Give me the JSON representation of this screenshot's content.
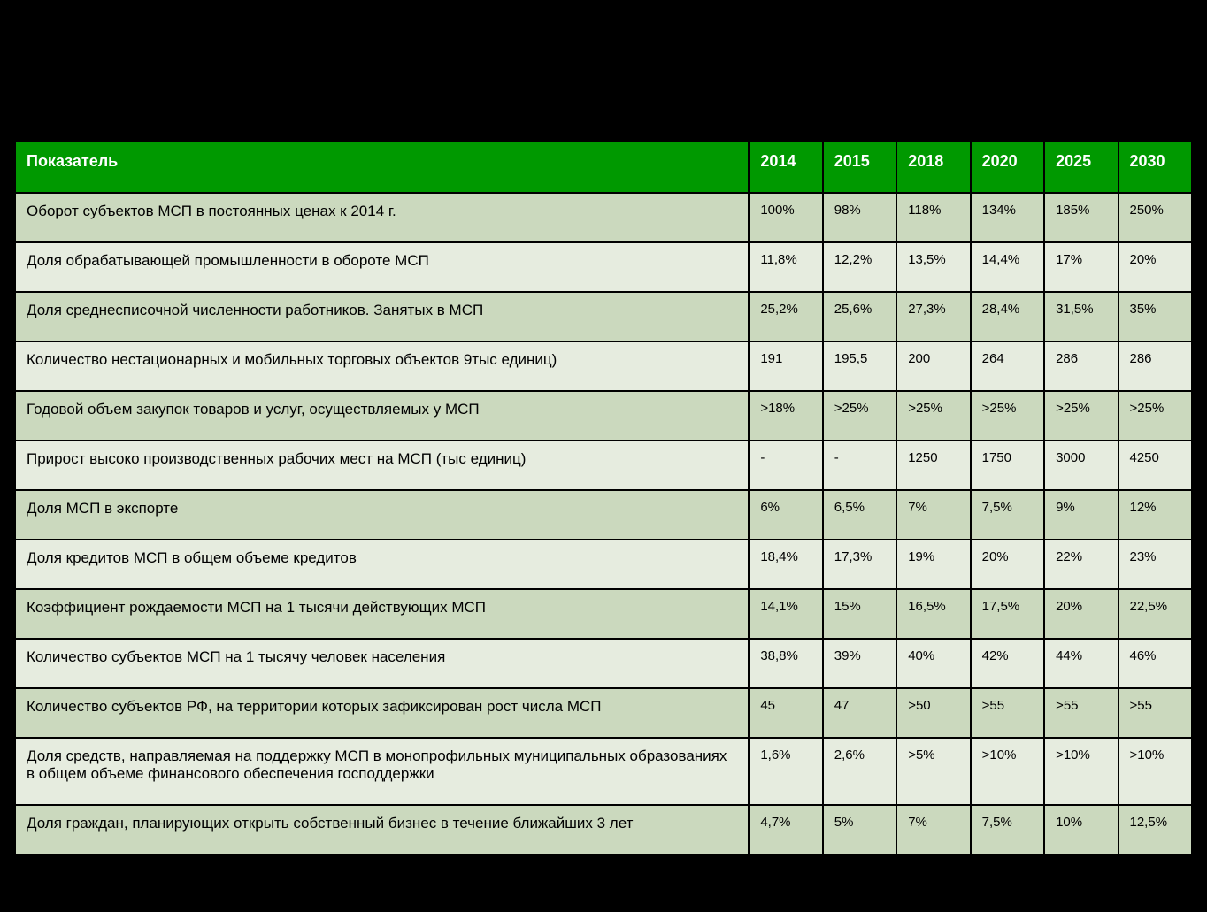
{
  "table": {
    "type": "table",
    "background_color": "#000000",
    "header_bg": "#009900",
    "header_text_color": "#ffffff",
    "row_dark_bg": "#cbd9be",
    "row_light_bg": "#e6ecdf",
    "text_color": "#000000",
    "header_fontsize": 18,
    "cell_fontsize": 16,
    "columns": [
      "Показатель",
      "2014",
      "2015",
      "2018",
      "2020",
      "2025",
      "2030"
    ],
    "rows": [
      {
        "label": "Оборот субъектов МСП в постоянных ценах к 2014 г.",
        "values": [
          "100%",
          "98%",
          "118%",
          "134%",
          "185%",
          "250%"
        ]
      },
      {
        "label": "Доля обрабатывающей промышленности в обороте МСП",
        "values": [
          "11,8%",
          "12,2%",
          "13,5%",
          "14,4%",
          "17%",
          "20%"
        ]
      },
      {
        "label": "Доля среднесписочной численности работников. Занятых в МСП",
        "values": [
          "25,2%",
          "25,6%",
          "27,3%",
          "28,4%",
          "31,5%",
          "35%"
        ]
      },
      {
        "label": "Количество нестационарных и мобильных торговых объектов 9тыс единиц)",
        "values": [
          "191",
          "195,5",
          "200",
          "264",
          "286",
          "286"
        ]
      },
      {
        "label": "Годовой объем закупок товаров и услуг, осуществляемых у МСП",
        "values": [
          ">18%",
          ">25%",
          ">25%",
          ">25%",
          ">25%",
          ">25%"
        ]
      },
      {
        "label": "Прирост высоко производственных рабочих мест на МСП (тыс единиц)",
        "values": [
          "-",
          "-",
          "1250",
          "1750",
          "3000",
          "4250"
        ]
      },
      {
        "label": "Доля МСП в экспорте",
        "values": [
          "6%",
          "6,5%",
          "7%",
          "7,5%",
          "9%",
          "12%"
        ]
      },
      {
        "label": "Доля кредитов МСП в общем объеме кредитов",
        "values": [
          "18,4%",
          "17,3%",
          "19%",
          "20%",
          "22%",
          "23%"
        ]
      },
      {
        "label": "Коэффициент рождаемости МСП на 1 тысячи действующих МСП",
        "values": [
          "14,1%",
          "15%",
          "16,5%",
          "17,5%",
          "20%",
          "22,5%"
        ]
      },
      {
        "label": "Количество субъектов МСП на 1 тысячу человек населения",
        "values": [
          "38,8%",
          "39%",
          "40%",
          "42%",
          "44%",
          "46%"
        ]
      },
      {
        "label": "Количество субъектов РФ, на территории которых зафиксирован рост числа МСП",
        "values": [
          "45",
          "47",
          ">50",
          ">55",
          ">55",
          ">55"
        ]
      },
      {
        "label": "Доля средств, направляемая на поддержку МСП в монопрофильных муниципальных образованиях в общем объеме финансового обеспечения господдержки",
        "values": [
          "1,6%",
          "2,6%",
          ">5%",
          ">10%",
          ">10%",
          ">10%"
        ]
      },
      {
        "label": "Доля граждан, планирующих открыть собственный бизнес в течение ближайших 3 лет",
        "values": [
          "4,7%",
          "5%",
          "7%",
          "7,5%",
          "10%",
          "12,5%"
        ]
      }
    ]
  }
}
